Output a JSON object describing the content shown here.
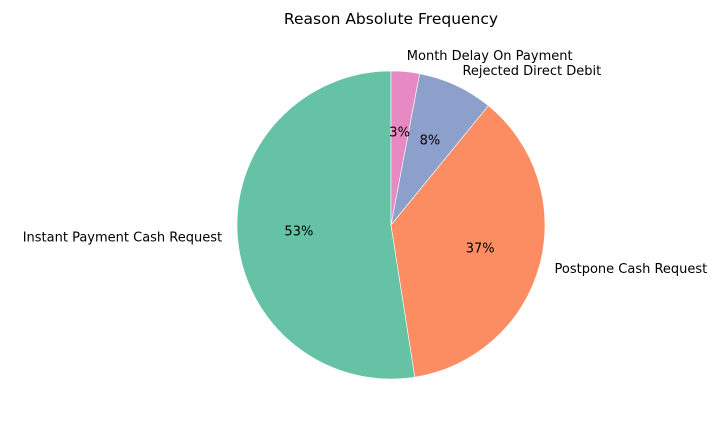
{
  "chart_data": {
    "type": "pie",
    "title": "Reason Absolute Frequency",
    "start_angle_deg": 90,
    "direction": "counterclockwise",
    "slices": [
      {
        "label": "Instant Payment Cash Request",
        "value": 53,
        "pct_label": "53%",
        "color": "#66c2a5"
      },
      {
        "label": "Postpone Cash Request",
        "value": 37,
        "pct_label": "37%",
        "color": "#fc8d62"
      },
      {
        "label": "Rejected Direct Debit",
        "value": 8,
        "pct_label": "8%",
        "color": "#8da0cb"
      },
      {
        "label": "Month Delay On Payment",
        "value": 3,
        "pct_label": "3%",
        "color": "#e78ac3"
      }
    ]
  }
}
